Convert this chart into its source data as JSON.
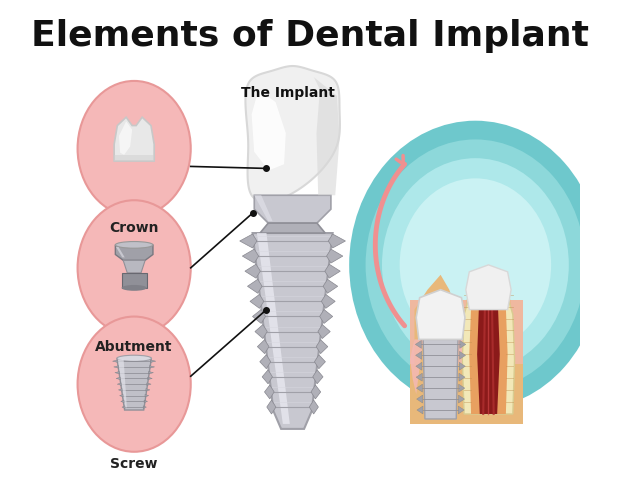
{
  "title": "Elements of Dental Implant",
  "title_fontsize": 26,
  "title_fontweight": "bold",
  "background_color": "#ffffff",
  "pink_bg": "#f5b8b8",
  "pink_edge": "#e89898",
  "implant_label": "The Implant",
  "crown_label": "Crown",
  "abutment_label": "Abutment",
  "screw_label": "Screw",
  "teal_outer": "#6ec8cc",
  "teal_mid": "#9adde0",
  "teal_inner": "#c4eff1",
  "teal_core": "#dff6f8"
}
